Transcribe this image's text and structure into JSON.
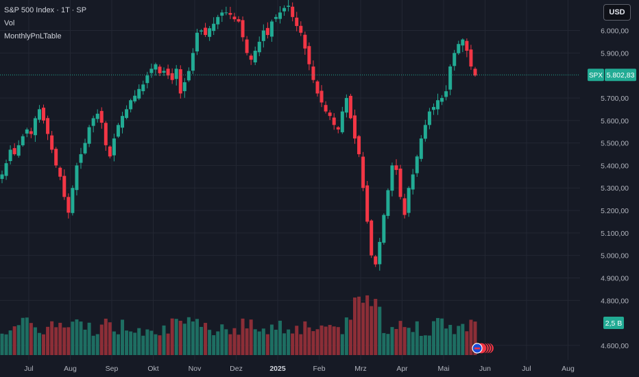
{
  "legend": {
    "title": "S&P 500 Index · 1T · SP",
    "line2": "Vol",
    "line3": "MonthlyPnLTable"
  },
  "currency_button": "USD",
  "colors": {
    "background": "#161a25",
    "grid": "#232733",
    "up": "#22ab94",
    "down": "#f23645",
    "vol_up": "#1e6e62",
    "vol_down": "#8c2e37",
    "price_line": "#22ab94"
  },
  "chart_data": {
    "type": "candlestick",
    "ylim": [
      4560,
      6160
    ],
    "y_ticks": [
      {
        "value": 6000,
        "label": "6.000,00"
      },
      {
        "value": 5900,
        "label": "5.900,00"
      },
      {
        "value": 5700,
        "label": "5.700,00"
      },
      {
        "value": 5600,
        "label": "5.600,00"
      },
      {
        "value": 5500,
        "label": "5.500,00"
      },
      {
        "value": 5400,
        "label": "5.400,00"
      },
      {
        "value": 5300,
        "label": "5.300,00"
      },
      {
        "value": 5200,
        "label": "5.200,00"
      },
      {
        "value": 5100,
        "label": "5.100,00"
      },
      {
        "value": 5000,
        "label": "5.000,00"
      },
      {
        "value": 4900,
        "label": "4.900,00"
      },
      {
        "value": 4800,
        "label": "4.800,00"
      },
      {
        "value": 4600,
        "label": "4.600,00"
      }
    ],
    "x_ticks": [
      {
        "label": "Jul",
        "year": false
      },
      {
        "label": "Aug",
        "year": false
      },
      {
        "label": "Sep",
        "year": false
      },
      {
        "label": "Okt",
        "year": false
      },
      {
        "label": "Nov",
        "year": false
      },
      {
        "label": "Dez",
        "year": false
      },
      {
        "label": "2025",
        "year": true
      },
      {
        "label": "Feb",
        "year": false
      },
      {
        "label": "Mrz",
        "year": false
      },
      {
        "label": "Apr",
        "year": false
      },
      {
        "label": "Mai",
        "year": false
      },
      {
        "label": "Jun",
        "year": false
      },
      {
        "label": "Jul",
        "year": false
      },
      {
        "label": "Aug",
        "year": false
      }
    ],
    "last_price": {
      "symbol": "SPX",
      "label": "5.802,83",
      "value": 5802.83
    },
    "volume_label": "2,5 B",
    "close_path": [
      5360,
      5410,
      5470,
      5450,
      5490,
      5530,
      5560,
      5540,
      5610,
      5650,
      5600,
      5540,
      5470,
      5400,
      5350,
      5260,
      5190,
      5300,
      5400,
      5450,
      5500,
      5570,
      5610,
      5630,
      5590,
      5490,
      5440,
      5520,
      5580,
      5620,
      5650,
      5690,
      5710,
      5740,
      5760,
      5800,
      5830,
      5850,
      5810,
      5820,
      5800,
      5780,
      5830,
      5720,
      5770,
      5820,
      5900,
      5990,
      6000,
      5980,
      6010,
      6030,
      6060,
      6080,
      6080,
      6070,
      6050,
      6040,
      5970,
      5900,
      5870,
      5910,
      5950,
      6000,
      5980,
      6040,
      6060,
      6080,
      6100,
      6110,
      6060,
      6020,
      5990,
      5920,
      5850,
      5780,
      5720,
      5680,
      5640,
      5620,
      5580,
      5560,
      5640,
      5700,
      5610,
      5520,
      5450,
      5300,
      5150,
      5000,
      4960,
      5060,
      5180,
      5290,
      5400,
      5380,
      5260,
      5180,
      5300,
      5360,
      5440,
      5520,
      5580,
      5640,
      5660,
      5690,
      5700,
      5730,
      5840,
      5900,
      5940,
      5960,
      5910,
      5840,
      5800
    ]
  }
}
